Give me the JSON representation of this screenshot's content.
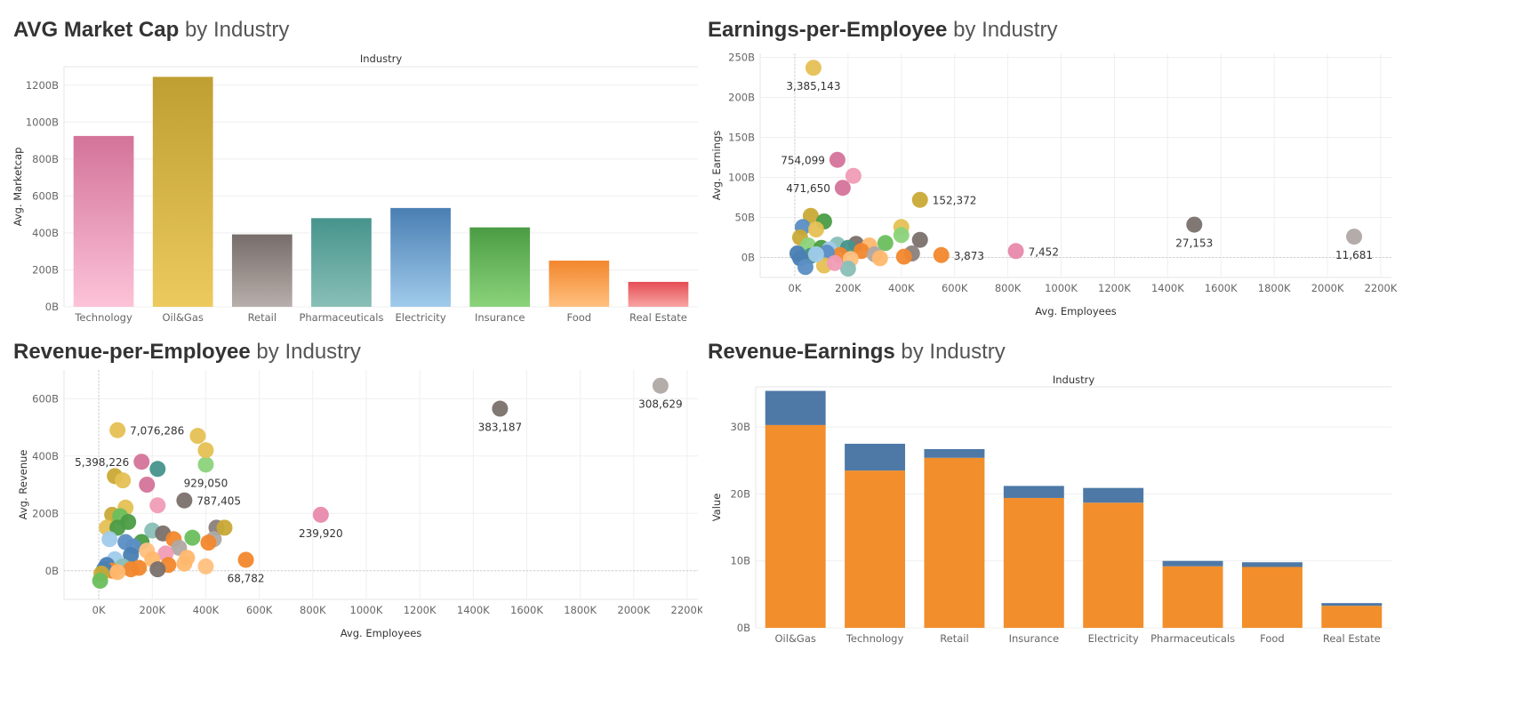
{
  "panels": {
    "p1": {
      "title_bold": "AVG Market Cap",
      "title_rest": " by Industry"
    },
    "p2": {
      "title_bold": "Earnings-per-Employee",
      "title_rest": " by Industry"
    },
    "p3": {
      "title_bold": "Revenue-per-Employee",
      "title_rest": " by Industry"
    },
    "p4": {
      "title_bold": "Revenue-Earnings",
      "title_rest": " by Industry"
    }
  },
  "chart_data": [
    {
      "id": "marketcap",
      "type": "bar",
      "title": "AVG Market Cap by Industry",
      "header": "Industry",
      "ylabel": "Avg. Marketcap",
      "ylim": [
        0,
        1300
      ],
      "yticks": [
        0,
        200,
        400,
        600,
        800,
        1000,
        1200
      ],
      "ytick_labels": [
        "0B",
        "200B",
        "400B",
        "600B",
        "800B",
        "1000B",
        "1200B"
      ],
      "grid": true,
      "categories": [
        "Technology",
        "Oil&Gas",
        "Retail",
        "Pharmaceuticals",
        "Electricity",
        "Insurance",
        "Food",
        "Real Estate"
      ],
      "values": [
        925,
        1245,
        392,
        480,
        535,
        430,
        250,
        135
      ],
      "colors": [
        [
          "#d4739a",
          "#fcc3d8"
        ],
        [
          "#bf9f31",
          "#ecca5e"
        ],
        [
          "#776d6a",
          "#b7afab"
        ],
        [
          "#46948c",
          "#88bfb7"
        ],
        [
          "#4a7fb3",
          "#a0cbeb"
        ],
        [
          "#4b9c44",
          "#8bd37b"
        ],
        [
          "#f2872d",
          "#ffc07f"
        ],
        [
          "#e44d54",
          "#f8a5a3"
        ]
      ]
    },
    {
      "id": "earnings",
      "type": "scatter",
      "title": "Earnings-per-Employee by Industry",
      "xlabel": "Avg. Employees",
      "ylabel": "Avg. Earnings",
      "xlim": [
        -130,
        2240
      ],
      "ylim": [
        -25,
        255
      ],
      "xticks": [
        0,
        200,
        400,
        600,
        800,
        1000,
        1200,
        1400,
        1600,
        1800,
        2000,
        2200
      ],
      "xtick_labels": [
        "0K",
        "200K",
        "400K",
        "600K",
        "800K",
        "1000K",
        "1200K",
        "1400K",
        "1600K",
        "1800K",
        "2000K",
        "2200K"
      ],
      "yticks": [
        0,
        50,
        100,
        150,
        200,
        250
      ],
      "ytick_labels": [
        "0B",
        "50B",
        "100B",
        "150B",
        "200B",
        "250B"
      ],
      "grid": true,
      "points": [
        {
          "x": 70,
          "y": 237,
          "c": "#e5c053",
          "label": "3,385,143",
          "lp": "below"
        },
        {
          "x": 160,
          "y": 122,
          "c": "#d4739a",
          "label": "754,099",
          "lp": "left"
        },
        {
          "x": 220,
          "y": 102,
          "c": "#f09cb6"
        },
        {
          "x": 180,
          "y": 87,
          "c": "#d4739a",
          "label": "471,650",
          "lp": "left"
        },
        {
          "x": 470,
          "y": 72,
          "c": "#c9a935",
          "label": "152,372",
          "lp": "right"
        },
        {
          "x": 1500,
          "y": 41,
          "c": "#7a706c",
          "label": "27,153",
          "lp": "below"
        },
        {
          "x": 2100,
          "y": 26,
          "c": "#b0a8a3",
          "label": "11,681",
          "lp": "below"
        },
        {
          "x": 830,
          "y": 8,
          "c": "#e889ab",
          "label": "7,452",
          "lp": "right"
        },
        {
          "x": 550,
          "y": 3,
          "c": "#f2872d",
          "label": "3,873",
          "lp": "right"
        },
        {
          "x": 60,
          "y": 52,
          "c": "#c9a935"
        },
        {
          "x": 110,
          "y": 45,
          "c": "#4b9c44"
        },
        {
          "x": 30,
          "y": 38,
          "c": "#5b8ec4"
        },
        {
          "x": 80,
          "y": 35,
          "c": "#e5c053"
        },
        {
          "x": 20,
          "y": 25,
          "c": "#c9a935"
        },
        {
          "x": 400,
          "y": 38,
          "c": "#e5c053"
        },
        {
          "x": 400,
          "y": 28,
          "c": "#8bd37b"
        },
        {
          "x": 470,
          "y": 22,
          "c": "#7a706c"
        },
        {
          "x": 340,
          "y": 18,
          "c": "#6abf5d"
        },
        {
          "x": 230,
          "y": 17,
          "c": "#7a706c"
        },
        {
          "x": 160,
          "y": 16,
          "c": "#88bfb7"
        },
        {
          "x": 280,
          "y": 15,
          "c": "#ffb86e"
        },
        {
          "x": 50,
          "y": 15,
          "c": "#8bd37b"
        },
        {
          "x": 100,
          "y": 12,
          "c": "#4b9c44"
        },
        {
          "x": 200,
          "y": 12,
          "c": "#46948c"
        },
        {
          "x": 130,
          "y": 10,
          "c": "#a0cbeb"
        },
        {
          "x": 250,
          "y": 8,
          "c": "#f2872d"
        },
        {
          "x": 440,
          "y": 5,
          "c": "#8a807c"
        },
        {
          "x": 300,
          "y": 4,
          "c": "#b0a8a3"
        },
        {
          "x": 170,
          "y": 3,
          "c": "#f2872d"
        },
        {
          "x": 60,
          "y": 2,
          "c": "#46948c"
        },
        {
          "x": 210,
          "y": -2,
          "c": "#ffc07f"
        },
        {
          "x": 410,
          "y": 1,
          "c": "#f2872d"
        },
        {
          "x": 320,
          "y": -1,
          "c": "#ffb86e"
        },
        {
          "x": 120,
          "y": 6,
          "c": "#5b8ec4"
        },
        {
          "x": 20,
          "y": -1,
          "c": "#4a7fb3"
        },
        {
          "x": 40,
          "y": -12,
          "c": "#5b8ec4"
        },
        {
          "x": 110,
          "y": -10,
          "c": "#e5c053"
        },
        {
          "x": 200,
          "y": -14,
          "c": "#88bfb7"
        },
        {
          "x": 150,
          "y": -7,
          "c": "#f09cb6"
        },
        {
          "x": 80,
          "y": 4,
          "c": "#a0cbeb"
        },
        {
          "x": 10,
          "y": 5,
          "c": "#4a7fb3"
        }
      ]
    },
    {
      "id": "revenue",
      "type": "scatter",
      "title": "Revenue-per-Employee by Industry",
      "xlabel": "Avg. Employees",
      "ylabel": "Avg. Revenue",
      "xlim": [
        -130,
        2240
      ],
      "ylim": [
        -100,
        700
      ],
      "xticks": [
        0,
        200,
        400,
        600,
        800,
        1000,
        1200,
        1400,
        1600,
        1800,
        2000,
        2200
      ],
      "xtick_labels": [
        "0K",
        "200K",
        "400K",
        "600K",
        "800K",
        "1000K",
        "1200K",
        "1400K",
        "1600K",
        "1800K",
        "2000K",
        "2200K"
      ],
      "yticks": [
        0,
        200,
        400,
        600
      ],
      "ytick_labels": [
        "0B",
        "200B",
        "400B",
        "600B"
      ],
      "grid": true,
      "points": [
        {
          "x": 2100,
          "y": 645,
          "c": "#b0a8a3",
          "label": "308,629",
          "lp": "below"
        },
        {
          "x": 1500,
          "y": 565,
          "c": "#7a706c",
          "label": "383,187",
          "lp": "below"
        },
        {
          "x": 70,
          "y": 490,
          "c": "#e5c053",
          "label": "7,076,286",
          "lp": "right"
        },
        {
          "x": 160,
          "y": 380,
          "c": "#d4739a",
          "label": "5,398,226",
          "lp": "left"
        },
        {
          "x": 400,
          "y": 370,
          "c": "#8bd37b",
          "label": "929,050",
          "lp": "below"
        },
        {
          "x": 320,
          "y": 245,
          "c": "#7a706c",
          "label": "787,405",
          "lp": "right"
        },
        {
          "x": 830,
          "y": 195,
          "c": "#e889ab",
          "label": "239,920",
          "lp": "below"
        },
        {
          "x": 550,
          "y": 38,
          "c": "#f2872d",
          "label": "68,782",
          "lp": "below"
        },
        {
          "x": 370,
          "y": 470,
          "c": "#e5c053"
        },
        {
          "x": 400,
          "y": 420,
          "c": "#e5c053"
        },
        {
          "x": 220,
          "y": 355,
          "c": "#46948c"
        },
        {
          "x": 60,
          "y": 330,
          "c": "#c9a935"
        },
        {
          "x": 90,
          "y": 315,
          "c": "#e5c053"
        },
        {
          "x": 180,
          "y": 300,
          "c": "#d4739a"
        },
        {
          "x": 220,
          "y": 228,
          "c": "#f09cb6"
        },
        {
          "x": 100,
          "y": 220,
          "c": "#e5c053"
        },
        {
          "x": 50,
          "y": 195,
          "c": "#c9a935"
        },
        {
          "x": 80,
          "y": 190,
          "c": "#6abf5d"
        },
        {
          "x": 110,
          "y": 170,
          "c": "#4b9c44"
        },
        {
          "x": 30,
          "y": 150,
          "c": "#e5c053"
        },
        {
          "x": 70,
          "y": 150,
          "c": "#4b9c44"
        },
        {
          "x": 200,
          "y": 140,
          "c": "#88bfb7"
        },
        {
          "x": 240,
          "y": 130,
          "c": "#7a706c"
        },
        {
          "x": 440,
          "y": 150,
          "c": "#8a807c"
        },
        {
          "x": 470,
          "y": 150,
          "c": "#c9a935"
        },
        {
          "x": 350,
          "y": 115,
          "c": "#6abf5d"
        },
        {
          "x": 430,
          "y": 110,
          "c": "#b0a8a3"
        },
        {
          "x": 410,
          "y": 98,
          "c": "#f2872d"
        },
        {
          "x": 160,
          "y": 100,
          "c": "#4b9c44"
        },
        {
          "x": 280,
          "y": 110,
          "c": "#f2872d"
        },
        {
          "x": 40,
          "y": 110,
          "c": "#a0cbeb"
        },
        {
          "x": 100,
          "y": 100,
          "c": "#5b8ec4"
        },
        {
          "x": 130,
          "y": 85,
          "c": "#5b8ec4"
        },
        {
          "x": 300,
          "y": 80,
          "c": "#b0a8a3"
        },
        {
          "x": 180,
          "y": 70,
          "c": "#ffc07f"
        },
        {
          "x": 250,
          "y": 60,
          "c": "#f09cb6"
        },
        {
          "x": 120,
          "y": 55,
          "c": "#4a7fb3"
        },
        {
          "x": 330,
          "y": 45,
          "c": "#ffb86e"
        },
        {
          "x": 200,
          "y": 40,
          "c": "#ffb86e"
        },
        {
          "x": 60,
          "y": 40,
          "c": "#a0cbeb"
        },
        {
          "x": 30,
          "y": 20,
          "c": "#4a7fb3"
        },
        {
          "x": 90,
          "y": 15,
          "c": "#88bfb7"
        },
        {
          "x": 150,
          "y": 10,
          "c": "#f2872d"
        },
        {
          "x": 260,
          "y": 20,
          "c": "#f2872d"
        },
        {
          "x": 400,
          "y": 15,
          "c": "#ffc07f"
        },
        {
          "x": 320,
          "y": 25,
          "c": "#ffb86e"
        },
        {
          "x": 220,
          "y": 5,
          "c": "#7a706c"
        },
        {
          "x": 120,
          "y": 5,
          "c": "#f2872d"
        },
        {
          "x": 50,
          "y": 0,
          "c": "#f2872d"
        },
        {
          "x": 20,
          "y": 5,
          "c": "#4a7fb3"
        },
        {
          "x": 10,
          "y": -10,
          "c": "#c9a935"
        },
        {
          "x": 5,
          "y": -35,
          "c": "#6abf5d"
        },
        {
          "x": 70,
          "y": -5,
          "c": "#ffb86e"
        }
      ]
    },
    {
      "id": "revearn",
      "type": "bar",
      "stacked": true,
      "title": "Revenue-Earnings by Industry",
      "header": "Industry",
      "ylabel": "Value",
      "ylim": [
        0,
        36
      ],
      "yticks": [
        0,
        10,
        20,
        30
      ],
      "ytick_labels": [
        "0B",
        "10B",
        "20B",
        "30B"
      ],
      "grid": true,
      "categories": [
        "Oil&Gas",
        "Technology",
        "Retail",
        "Insurance",
        "Electricity",
        "Pharmaceuticals",
        "Food",
        "Real Estate"
      ],
      "series": [
        {
          "color": "#f28e2b",
          "values": [
            30.3,
            23.5,
            25.4,
            19.4,
            18.7,
            9.2,
            9.1,
            3.3
          ]
        },
        {
          "color": "#4e79a7",
          "values": [
            5.1,
            4.0,
            1.3,
            1.8,
            2.2,
            0.8,
            0.7,
            0.4
          ]
        }
      ]
    }
  ]
}
